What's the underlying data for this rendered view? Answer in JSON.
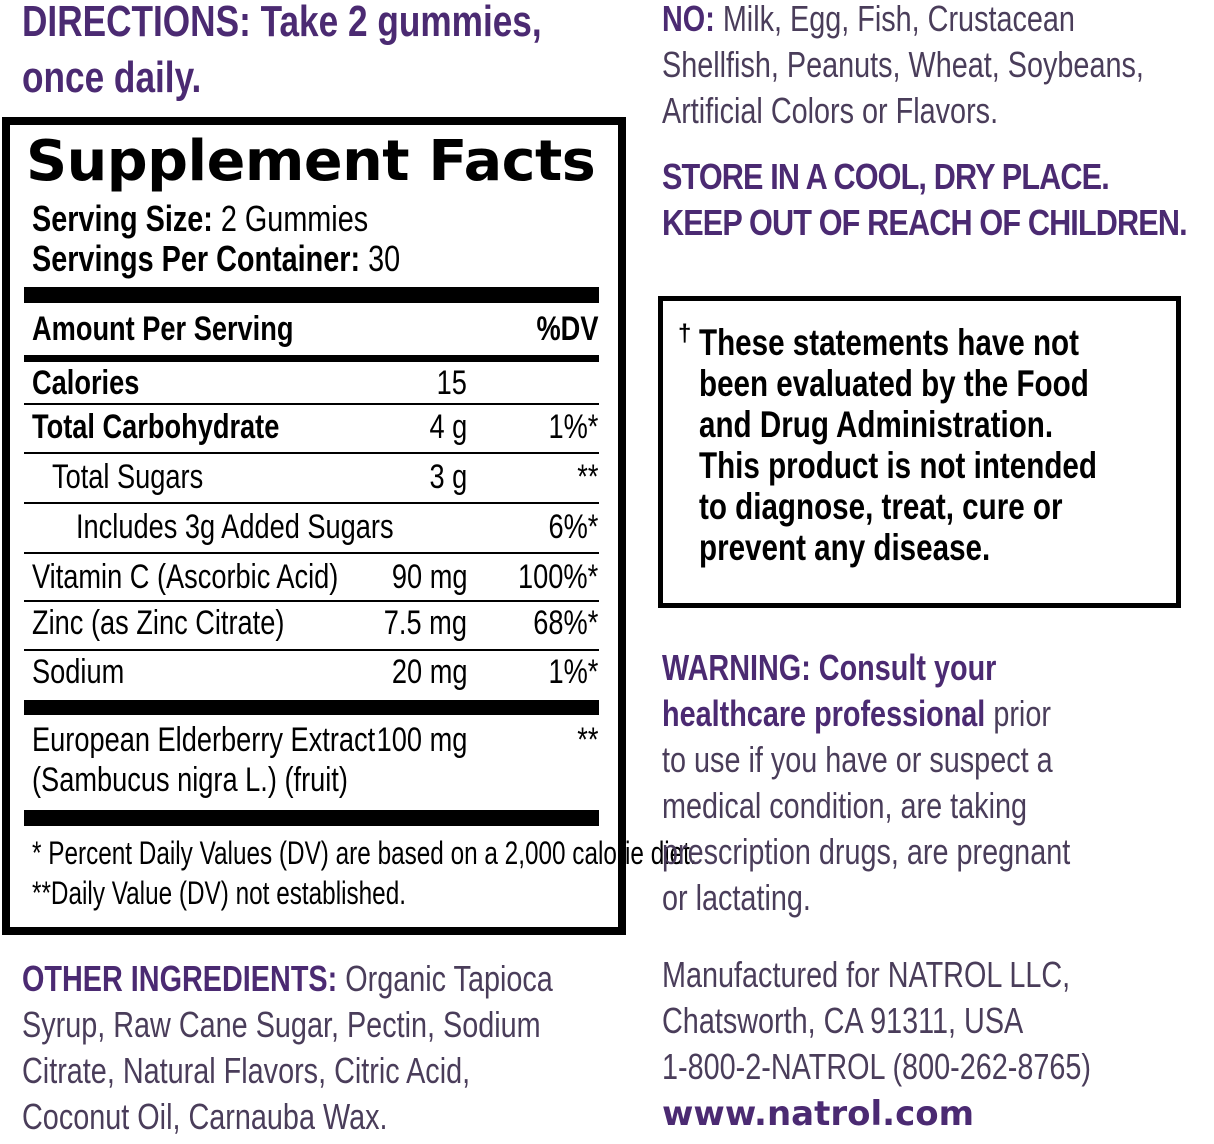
{
  "directions": {
    "label": "DIRECTIONS:",
    "text": "Take 2 gummies,",
    "line2": "once daily."
  },
  "facts": {
    "title": "Supplement Facts",
    "serving_size_label": "Serving Size:",
    "serving_size": "2 Gummies",
    "servings_label": "Servings Per Container:",
    "servings": "30",
    "amount_header": "Amount Per Serving",
    "dv_header": "%DV",
    "rows": [
      {
        "name": "Calories",
        "amount": "15",
        "dv": ""
      },
      {
        "name": "Total Carbohydrate",
        "amount": "4 g",
        "dv": "1%*"
      },
      {
        "name": "Total Sugars",
        "amount": "3 g",
        "dv": "**"
      },
      {
        "name": "Includes 3g Added Sugars",
        "amount": "",
        "dv": "6%*"
      },
      {
        "name": "Vitamin C (Ascorbic Acid)",
        "amount": "90 mg",
        "dv": "100%*"
      },
      {
        "name": "Zinc (as Zinc Citrate)",
        "amount": "7.5 mg",
        "dv": "68%*"
      },
      {
        "name": "Sodium",
        "amount": "20 mg",
        "dv": "1%*"
      },
      {
        "name": "European Elderberry Extract",
        "name2": "(Sambucus nigra L.) (fruit)",
        "amount": "100 mg",
        "dv": "**"
      }
    ],
    "footnote1": "* Percent Daily Values (DV) are based on a 2,000 calorie diet.",
    "footnote2": "**Daily Value (DV) not established."
  },
  "other_ingredients": {
    "label": "OTHER INGREDIENTS:",
    "lines": [
      "Organic Tapioca",
      "Syrup, Raw Cane Sugar, Pectin, Sodium",
      "Citrate, Natural Flavors, Citric Acid,",
      "Coconut Oil, Carnauba Wax."
    ]
  },
  "no": {
    "label": "NO:",
    "lines": [
      "Milk, Egg, Fish, Crustacean",
      "Shellfish, Peanuts, Wheat, Soybeans,",
      "Artificial Colors or Flavors."
    ]
  },
  "storage": [
    "STORE IN A COOL, DRY PLACE.",
    "KEEP OUT OF REACH OF CHILDREN."
  ],
  "disclaimer": {
    "dagger": "†",
    "lines": [
      "These statements have not",
      "been evaluated by the Food",
      "and Drug Administration.",
      "This product is not intended",
      "to diagnose, treat, cure or",
      "prevent any disease."
    ]
  },
  "warning": {
    "label": "WARNING: Consult your",
    "label2": "healthcare professional",
    "rest": "prior",
    "lines": [
      "to use if you have or suspect a",
      "medical condition, are taking",
      "prescription drugs, are pregnant",
      "or lactating."
    ]
  },
  "manufacturer": {
    "lines": [
      "Manufactured for NATROL LLC,",
      "Chatsworth, CA 91311, USA",
      "1-800-2-NATROL (800-262-8765)"
    ],
    "website": "www.natrol.com"
  },
  "colors": {
    "purple": "#4b2a72",
    "text_gray": "#4a3d5a"
  }
}
